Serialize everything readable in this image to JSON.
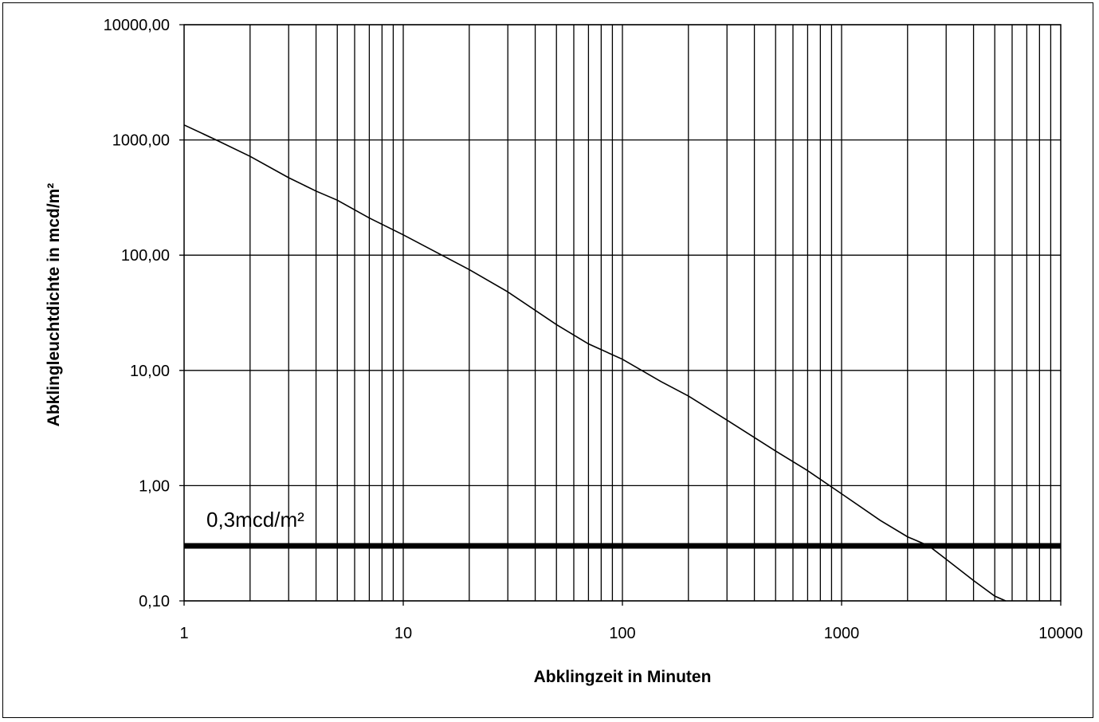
{
  "chart_data": {
    "type": "line",
    "title": "",
    "xlabel": "Abklingzeit in Minuten",
    "ylabel": "Abklingleuchtdichte in mcd/m²",
    "x_scale": "log",
    "y_scale": "log",
    "xlim": [
      1,
      10000
    ],
    "ylim": [
      0.1,
      10000
    ],
    "grid": true,
    "legend": "none",
    "x_tick_values": [
      1,
      10,
      100,
      1000,
      10000
    ],
    "x_tick_labels": [
      "1",
      "10",
      "100",
      "1000",
      "10000"
    ],
    "y_tick_values": [
      0.1,
      1,
      10,
      100,
      1000,
      10000
    ],
    "y_tick_labels": [
      "0,10",
      "1,00",
      "10,00",
      "100,00",
      "1000,00",
      "10000,00"
    ],
    "series": [
      {
        "x": [
          1,
          1.4,
          2,
          3,
          4,
          5,
          7,
          10,
          15,
          20,
          30,
          50,
          70,
          100,
          150,
          200,
          300,
          500,
          700,
          1000,
          1500,
          2000,
          2500,
          3000,
          4000,
          5000,
          5600
        ],
        "y": [
          1350,
          1000,
          720,
          470,
          360,
          300,
          210,
          150,
          100,
          75,
          48,
          25,
          17,
          12.5,
          8,
          6,
          3.7,
          2,
          1.35,
          0.85,
          0.5,
          0.36,
          0.3,
          0.23,
          0.15,
          0.11,
          0.1
        ],
        "color": "#000000"
      }
    ],
    "reference_line": {
      "y": 0.3,
      "label": "0,3mcd/m²",
      "color": "#000000"
    }
  }
}
